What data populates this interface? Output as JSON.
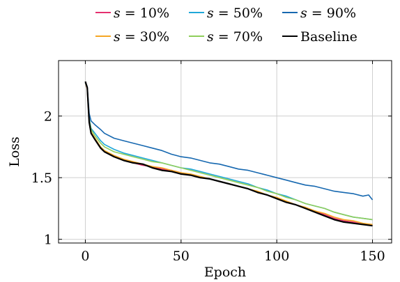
{
  "chart_data": {
    "type": "line",
    "title": "",
    "xlabel": "Epoch",
    "ylabel": "Loss",
    "xlim": [
      -14,
      160
    ],
    "ylim": [
      0.97,
      2.45
    ],
    "xticks": [
      0,
      50,
      100,
      150
    ],
    "xtick_labels": [
      "0",
      "50",
      "100",
      "150"
    ],
    "yticks": [
      1,
      1.5,
      2
    ],
    "ytick_labels": [
      "1",
      "1.5",
      "2"
    ],
    "grid": true,
    "legend_position": "top-center, outside plot, 3 columns",
    "series": [
      {
        "name": "s = 10%",
        "legend_label": {
          "sym": "s",
          "eq": " = ",
          "val": "10%"
        },
        "color": "#e5306f",
        "x": [
          0,
          1,
          2,
          3,
          5,
          8,
          10,
          15,
          20,
          25,
          30,
          35,
          40,
          45,
          50,
          55,
          60,
          65,
          70,
          75,
          80,
          85,
          90,
          95,
          100,
          105,
          110,
          115,
          120,
          125,
          130,
          135,
          140,
          145,
          150
        ],
        "values": [
          2.27,
          2.22,
          1.95,
          1.86,
          1.81,
          1.74,
          1.71,
          1.67,
          1.64,
          1.62,
          1.6,
          1.59,
          1.57,
          1.56,
          1.54,
          1.52,
          1.5,
          1.49,
          1.47,
          1.45,
          1.43,
          1.41,
          1.38,
          1.36,
          1.33,
          1.3,
          1.28,
          1.25,
          1.23,
          1.2,
          1.17,
          1.15,
          1.14,
          1.12,
          1.11
        ]
      },
      {
        "name": "s = 30%",
        "legend_label": {
          "sym": "s",
          "eq": " = ",
          "val": "30%"
        },
        "color": "#f5a623",
        "x": [
          0,
          1,
          2,
          3,
          5,
          8,
          10,
          15,
          20,
          25,
          30,
          35,
          40,
          45,
          50,
          55,
          60,
          65,
          70,
          75,
          80,
          85,
          90,
          95,
          100,
          105,
          110,
          115,
          120,
          125,
          130,
          135,
          140,
          145,
          150
        ],
        "values": [
          2.27,
          2.22,
          1.96,
          1.87,
          1.82,
          1.75,
          1.72,
          1.68,
          1.65,
          1.63,
          1.61,
          1.59,
          1.58,
          1.56,
          1.54,
          1.53,
          1.51,
          1.49,
          1.47,
          1.45,
          1.43,
          1.41,
          1.39,
          1.36,
          1.34,
          1.31,
          1.28,
          1.26,
          1.23,
          1.21,
          1.18,
          1.16,
          1.15,
          1.13,
          1.12
        ]
      },
      {
        "name": "s = 50%",
        "legend_label": {
          "sym": "s",
          "eq": " = ",
          "val": "50%"
        },
        "color": "#1fa7d8",
        "x": [
          0,
          1,
          2,
          3,
          5,
          8,
          10,
          15,
          20,
          25,
          30,
          35,
          40,
          45,
          50,
          55,
          60,
          65,
          70,
          75,
          80,
          85,
          90,
          95,
          100,
          105,
          110,
          115,
          120,
          125,
          130,
          135,
          140,
          145,
          150
        ],
        "values": [
          2.27,
          2.23,
          1.98,
          1.9,
          1.86,
          1.8,
          1.77,
          1.73,
          1.7,
          1.68,
          1.66,
          1.64,
          1.62,
          1.6,
          1.58,
          1.57,
          1.55,
          1.53,
          1.51,
          1.49,
          1.47,
          1.45,
          1.42,
          1.4,
          1.37,
          1.35,
          1.32,
          1.29,
          1.27,
          1.25,
          1.22,
          1.2,
          1.18,
          1.17,
          1.16
        ]
      },
      {
        "name": "s = 70%",
        "legend_label": {
          "sym": "s",
          "eq": " = ",
          "val": "70%"
        },
        "color": "#8fce5a",
        "x": [
          0,
          1,
          2,
          3,
          5,
          8,
          10,
          15,
          20,
          25,
          30,
          35,
          40,
          45,
          50,
          55,
          60,
          65,
          70,
          75,
          80,
          85,
          90,
          95,
          100,
          105,
          110,
          115,
          120,
          125,
          130,
          135,
          140,
          145,
          150
        ],
        "values": [
          2.27,
          2.23,
          1.97,
          1.89,
          1.84,
          1.78,
          1.75,
          1.71,
          1.69,
          1.67,
          1.65,
          1.63,
          1.62,
          1.6,
          1.58,
          1.56,
          1.54,
          1.52,
          1.5,
          1.48,
          1.46,
          1.44,
          1.42,
          1.39,
          1.37,
          1.34,
          1.32,
          1.29,
          1.27,
          1.25,
          1.22,
          1.2,
          1.18,
          1.17,
          1.16
        ]
      },
      {
        "name": "s = 90%",
        "legend_label": {
          "sym": "s",
          "eq": " = ",
          "val": "90%"
        },
        "color": "#1668b0",
        "x": [
          0,
          1,
          2,
          3,
          5,
          8,
          10,
          15,
          20,
          25,
          30,
          35,
          40,
          45,
          50,
          55,
          60,
          65,
          70,
          75,
          80,
          85,
          90,
          95,
          100,
          105,
          110,
          115,
          120,
          125,
          130,
          135,
          140,
          145,
          148,
          150
        ],
        "values": [
          2.27,
          2.24,
          2.02,
          1.96,
          1.93,
          1.89,
          1.86,
          1.82,
          1.8,
          1.78,
          1.76,
          1.74,
          1.72,
          1.69,
          1.67,
          1.66,
          1.64,
          1.62,
          1.61,
          1.59,
          1.57,
          1.56,
          1.54,
          1.52,
          1.5,
          1.48,
          1.46,
          1.44,
          1.43,
          1.41,
          1.39,
          1.38,
          1.37,
          1.35,
          1.36,
          1.32
        ]
      },
      {
        "name": "Baseline",
        "legend_label": {
          "text": "Baseline"
        },
        "color": "#000000",
        "x": [
          0,
          1,
          2,
          3,
          5,
          8,
          10,
          15,
          20,
          25,
          30,
          35,
          40,
          45,
          50,
          55,
          60,
          65,
          70,
          75,
          80,
          85,
          90,
          95,
          100,
          105,
          110,
          115,
          120,
          125,
          130,
          135,
          140,
          145,
          150
        ],
        "values": [
          2.28,
          2.23,
          1.95,
          1.86,
          1.81,
          1.74,
          1.71,
          1.67,
          1.64,
          1.62,
          1.61,
          1.58,
          1.56,
          1.55,
          1.53,
          1.52,
          1.5,
          1.49,
          1.47,
          1.45,
          1.43,
          1.41,
          1.38,
          1.36,
          1.33,
          1.3,
          1.28,
          1.25,
          1.22,
          1.19,
          1.16,
          1.14,
          1.13,
          1.12,
          1.11
        ]
      }
    ]
  }
}
